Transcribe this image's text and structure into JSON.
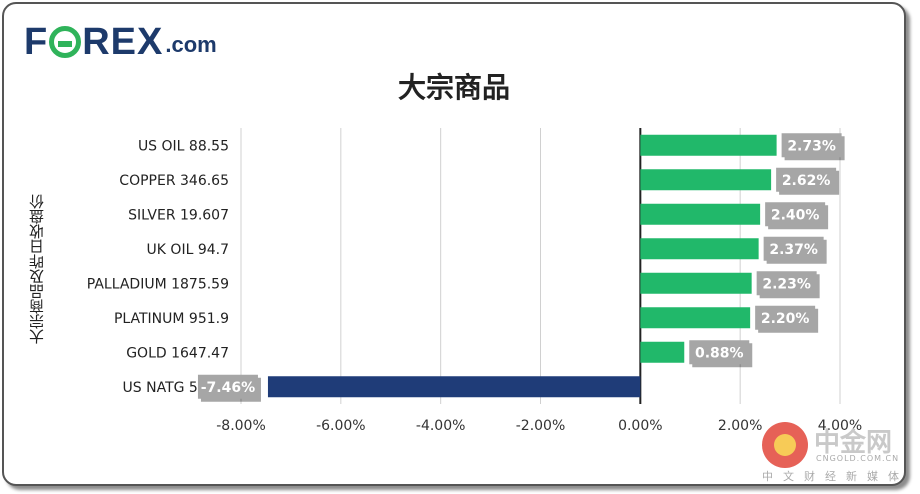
{
  "header": {
    "logo_text": "FOREX.com"
  },
  "chart_data": {
    "type": "bar",
    "orientation": "horizontal",
    "title": "大宗商品",
    "xlabel": "",
    "ylabel": "大宗商品及昨日收盘价",
    "xlim": [
      -0.08,
      0.04
    ],
    "xticks": [
      "-8.00%",
      "-6.00%",
      "-4.00%",
      "-2.00%",
      "0.00%",
      "2.00%",
      "4.00%"
    ],
    "grid": true,
    "categories": [
      "US OIL  88.55",
      "COPPER  346.65",
      "SILVER  19.607",
      "UK OIL  94.7",
      "PALLADIUM  1875.59",
      "PLATINUM  951.9",
      "GOLD  1647.47",
      "US NATG  5.817"
    ],
    "values": [
      0.0273,
      0.0262,
      0.024,
      0.0237,
      0.0223,
      0.022,
      0.0088,
      -0.0746
    ],
    "data_labels": [
      "2.73%",
      "2.62%",
      "2.40%",
      "2.37%",
      "2.23%",
      "2.20%",
      "0.88%",
      "-7.46%"
    ],
    "colors": {
      "positive": "#21b86a",
      "negative": "#1f3c78",
      "label_box": "#a6a6a6",
      "grid": "#d0d0d0"
    }
  },
  "watermark": {
    "name": "中金网",
    "url": "CNGOLD.COM.CN",
    "subtitle": "中文财经新媒体"
  }
}
